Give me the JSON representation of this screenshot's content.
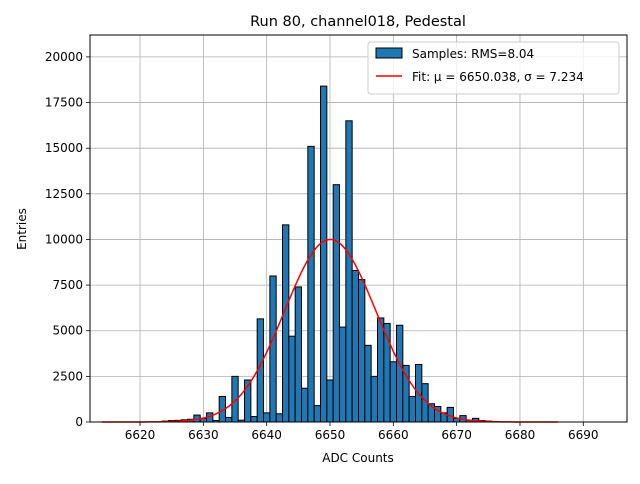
{
  "chart_data": {
    "type": "bar",
    "title": "Run 80, channel018, Pedestal",
    "xlabel": "ADC Counts",
    "ylabel": "Entries",
    "xlim": [
      6612.1,
      6696.9
    ],
    "ylim": [
      0,
      21200
    ],
    "grid": true,
    "legend_position": "top-right",
    "x_ticks": [
      6620,
      6630,
      6640,
      6650,
      6660,
      6670,
      6680,
      6690
    ],
    "y_ticks": [
      0,
      2500,
      5000,
      7500,
      10000,
      12500,
      15000,
      17500,
      20000
    ],
    "legend": [
      {
        "label": "Samples: RMS=8.04",
        "kind": "patch"
      },
      {
        "label": "Fit: μ = 6650.038, σ = 7.234",
        "kind": "line"
      }
    ],
    "series": [
      {
        "kind": "histogram",
        "bin_width": 1,
        "color": "#1f77b4",
        "edge_color": "#000000",
        "x": [
          6624,
          6625,
          6626,
          6627,
          6628,
          6629,
          6630,
          6631,
          6632,
          6633,
          6634,
          6635,
          6636,
          6637,
          6638,
          6639,
          6640,
          6641,
          6642,
          6643,
          6644,
          6645,
          6646,
          6647,
          6648,
          6649,
          6650,
          6651,
          6652,
          6653,
          6654,
          6655,
          6656,
          6657,
          6658,
          6659,
          6660,
          6661,
          6662,
          6663,
          6664,
          6665,
          6666,
          6667,
          6668,
          6669,
          6670,
          6671,
          6672,
          6673,
          6674,
          6675,
          6676
        ],
        "values": [
          50,
          80,
          90,
          120,
          150,
          380,
          200,
          500,
          80,
          1400,
          250,
          2500,
          100,
          2300,
          300,
          5650,
          500,
          8000,
          450,
          10800,
          4700,
          7400,
          1850,
          15100,
          900,
          18400,
          2300,
          13000,
          5200,
          16500,
          8300,
          7800,
          4200,
          2500,
          5700,
          5400,
          3300,
          5300,
          3100,
          1400,
          3150,
          2100,
          1000,
          850,
          500,
          800,
          200,
          350,
          100,
          200,
          80,
          50,
          30
        ]
      },
      {
        "kind": "fit_curve",
        "color": "#ff0000",
        "mu": 6650.038,
        "sigma": 7.234,
        "amplitude": 10000,
        "x_range": [
          6614,
          6686
        ]
      }
    ]
  }
}
